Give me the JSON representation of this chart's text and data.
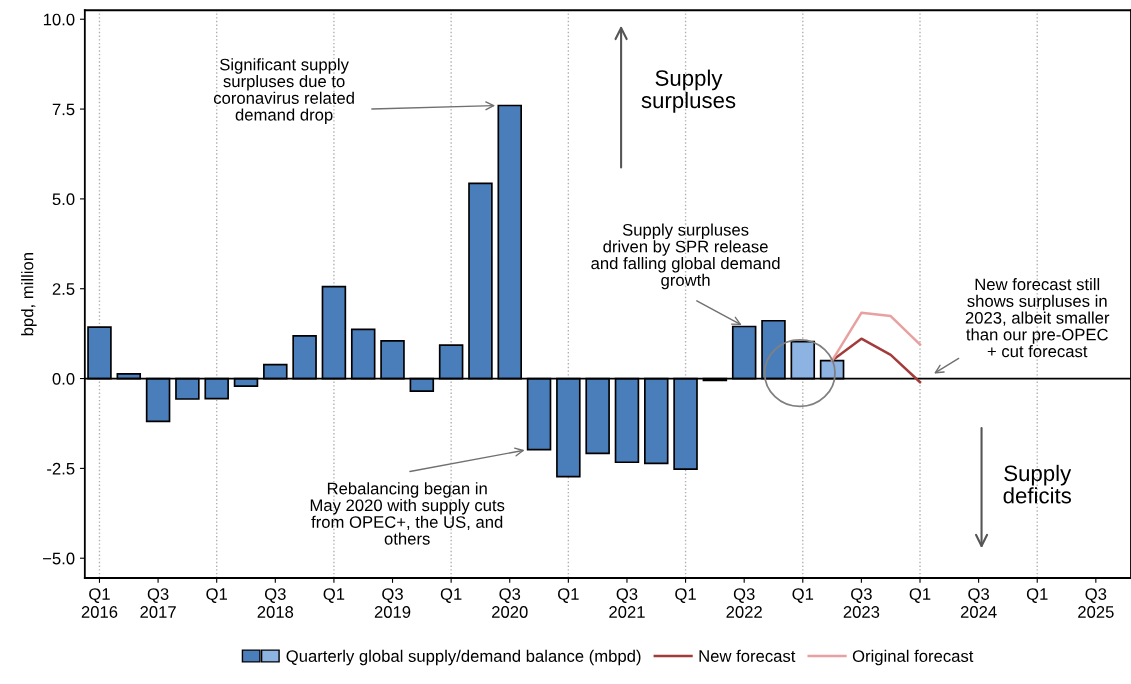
{
  "chart_data": {
    "type": "bar",
    "ylabel": "bpd, million",
    "categories": [
      "Q1\n2016",
      null,
      "Q3\n2017",
      null,
      "Q1",
      null,
      "Q3\n2018",
      null,
      "Q1",
      null,
      "Q3\n2019",
      null,
      "Q1",
      null,
      "Q3\n2020",
      null,
      "Q1",
      null,
      "Q3\n2021",
      null,
      "Q1",
      null,
      "Q3\n2022",
      null,
      "Q1",
      null,
      "Q3\n2023",
      null,
      "Q1",
      null,
      "Q3\n2024",
      null,
      "Q1",
      null,
      "Q3\n2025",
      null
    ],
    "series": [
      {
        "name": "Quarterly global supply/demand balance (mbpd)",
        "color": "#4a7ebb",
        "colors": [
          "#4a7ebb",
          "#4a7ebb",
          "#4a7ebb",
          "#4a7ebb",
          "#4a7ebb",
          "#4a7ebb",
          "#4a7ebb",
          "#4a7ebb",
          "#4a7ebb",
          "#4a7ebb",
          "#4a7ebb",
          "#4a7ebb",
          "#4a7ebb",
          "#4a7ebb",
          "#4a7ebb",
          "#4a7ebb",
          "#4a7ebb",
          "#4a7ebb",
          "#4a7ebb",
          "#4a7ebb",
          "#4a7ebb",
          "#4a7ebb",
          "#4a7ebb",
          "#4a7ebb",
          "#8db3e2",
          "#8db3e2",
          null,
          null,
          null,
          null,
          null,
          null,
          null,
          null,
          null,
          null
        ],
        "values": [
          1.43,
          0.13,
          -1.19,
          -0.57,
          -0.56,
          -0.21,
          0.39,
          1.19,
          2.56,
          1.37,
          1.05,
          -0.35,
          0.93,
          5.43,
          7.6,
          -1.98,
          -2.73,
          -2.08,
          -2.33,
          -2.36,
          -2.52,
          -0.05,
          1.45,
          1.61,
          1.03,
          0.5,
          null,
          null,
          null,
          null,
          null,
          null,
          null,
          null,
          null,
          null
        ]
      },
      {
        "name": "New forecast",
        "type": "line",
        "color": "#a33b3b",
        "values": [
          null,
          null,
          null,
          null,
          null,
          null,
          null,
          null,
          null,
          null,
          null,
          null,
          null,
          null,
          null,
          null,
          null,
          null,
          null,
          null,
          null,
          null,
          null,
          null,
          null,
          0.5,
          1.11,
          0.66,
          -0.1,
          null,
          null,
          null,
          null,
          null,
          null,
          null
        ]
      },
      {
        "name": "Original forecast",
        "type": "line",
        "color": "#e8a0a0",
        "values": [
          null,
          null,
          null,
          null,
          null,
          null,
          null,
          null,
          null,
          null,
          null,
          null,
          null,
          null,
          null,
          null,
          null,
          null,
          null,
          null,
          null,
          null,
          null,
          null,
          null,
          0.5,
          1.83,
          1.74,
          0.95,
          null,
          null,
          null,
          null,
          null,
          null,
          null
        ]
      }
    ],
    "ylim": [
      -5.55,
      10.25
    ],
    "yticks": [
      {
        "value": -5,
        "label": "−5.0"
      },
      {
        "value": -2.5,
        "label": "-2.5"
      },
      {
        "value": 0,
        "label": "0.0"
      },
      {
        "value": 2.5,
        "label": "2.5"
      },
      {
        "value": 5,
        "label": "5.0"
      },
      {
        "value": 7.5,
        "label": "7.5"
      },
      {
        "value": 10,
        "label": "10.0"
      }
    ],
    "ref_lines": [
      {
        "axis": "y",
        "value": 0,
        "color": "#000000",
        "line_style": "solid"
      }
    ],
    "annotations": [
      "Significant supply\nsurpluses due to\ncoronavirus related\ndemand drop",
      "Supply\nsurpluses",
      {
        "text": "Supply surpluses\ndriven by SPR release\nand falling global demand\ngrowth",
        "x": "Q3\n2022",
        "y": 1.45
      },
      "New forecast still\nshows surpluses in\n2023, albeit smaller\nthan our pre-OPEC\n+ cut forecast",
      "Rebalancing began in\nMay 2020 with supply cuts\nfrom OPEC+, the US, and\nothers",
      "Supply\ndeficits"
    ],
    "grid": "x",
    "legend": "bottom",
    "marker": "none",
    "line_style": "solid"
  }
}
